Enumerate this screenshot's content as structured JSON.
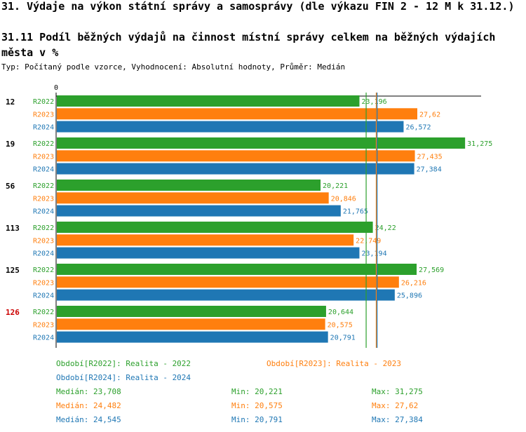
{
  "header": {
    "title": "31. Výdaje na výkon státní správy a samosprávy (dle výkazu FIN 2 - 12 M k 31.12.)",
    "subtitle": "31.11 Podíl běžných výdajů na činnost místní správy celkem na běžných výdajích města v %",
    "typ": "Typ: Počítaný podle vzorce, Vyhodnocení: Absolutní hodnoty, Průměr: Medián"
  },
  "colors": {
    "R2022": "#2ca02c",
    "R2023": "#ff7f0e",
    "R2024": "#1f77b4",
    "highlight": "#cc0000"
  },
  "chart_data": {
    "type": "bar",
    "orientation": "horizontal",
    "axis_zero_label": "0",
    "xlim": [
      0,
      32.5
    ],
    "categories": [
      "12",
      "19",
      "56",
      "113",
      "125",
      "126"
    ],
    "highlighted_category": "126",
    "series": [
      {
        "name": "R2022",
        "values": [
          23.196,
          31.275,
          20.221,
          24.22,
          27.569,
          20.644
        ],
        "labels": [
          "23,196",
          "31,275",
          "20,221",
          "24,22",
          "27,569",
          "20,644"
        ]
      },
      {
        "name": "R2023",
        "values": [
          27.62,
          27.435,
          20.846,
          22.749,
          26.216,
          20.575
        ],
        "labels": [
          "27,62",
          "27,435",
          "20,846",
          "22,749",
          "26,216",
          "20,575"
        ]
      },
      {
        "name": "R2024",
        "values": [
          26.572,
          27.384,
          21.765,
          23.194,
          25.896,
          20.791
        ],
        "labels": [
          "26,572",
          "27,384",
          "21,765",
          "23,194",
          "25,896",
          "20,791"
        ]
      }
    ],
    "median_lines": {
      "R2022": 23.708,
      "R2023": 24.482,
      "R2024": 24.545
    }
  },
  "legend": {
    "r2022": "Období[R2022]: Realita - 2022",
    "r2023": "Období[R2023]: Realita - 2023",
    "r2024": "Období[R2024]: Realita - 2024"
  },
  "stats": [
    {
      "median": "Medián: 23,708",
      "min": "Min: 20,221",
      "max": "Max: 31,275"
    },
    {
      "median": "Medián: 24,482",
      "min": "Min: 20,575",
      "max": "Max: 27,62"
    },
    {
      "median": "Medián: 24,545",
      "min": "Min: 20,791",
      "max": "Max: 27,384"
    }
  ]
}
